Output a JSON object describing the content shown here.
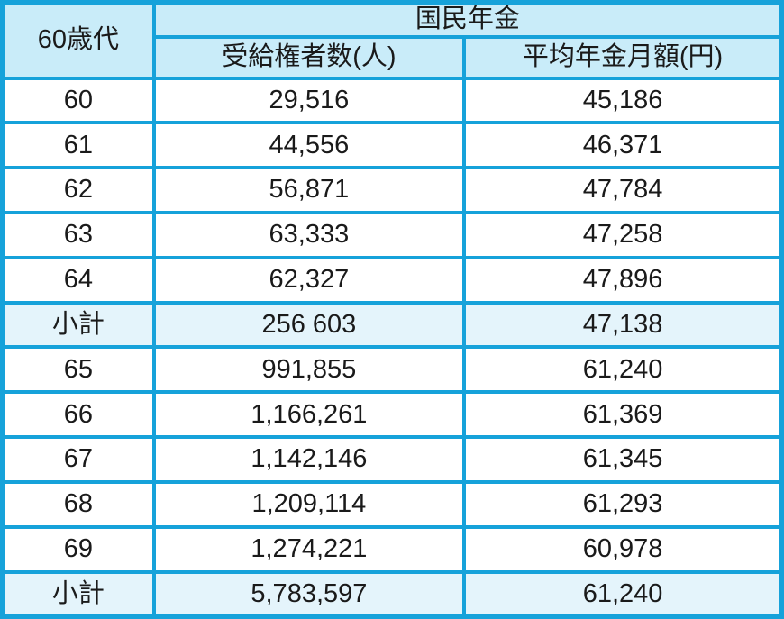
{
  "colors": {
    "border": "#16A2DA",
    "header_bg": "#C9ECF9",
    "subtotal_bg": "#E4F4FB",
    "row_bg": "#FFFFFF",
    "text": "#1A1A1A"
  },
  "table": {
    "corner_header": "60歳代",
    "group_header": "国民年金",
    "col_header_recipients": "受給権者数(人)",
    "col_header_amount": "平均年金月額(円)",
    "rows": [
      {
        "label": "60",
        "recipients": "29,516",
        "amount": "45,186",
        "subtotal": false
      },
      {
        "label": "61",
        "recipients": "44,556",
        "amount": "46,371",
        "subtotal": false
      },
      {
        "label": "62",
        "recipients": "56,871",
        "amount": "47,784",
        "subtotal": false
      },
      {
        "label": "63",
        "recipients": "63,333",
        "amount": "47,258",
        "subtotal": false
      },
      {
        "label": "64",
        "recipients": "62,327",
        "amount": "47,896",
        "subtotal": false
      },
      {
        "label": "小計",
        "recipients": "256 603",
        "amount": "47,138",
        "subtotal": true
      },
      {
        "label": "65",
        "recipients": "991,855",
        "amount": "61,240",
        "subtotal": false
      },
      {
        "label": "66",
        "recipients": "1,166,261",
        "amount": "61,369",
        "subtotal": false
      },
      {
        "label": "67",
        "recipients": "1,142,146",
        "amount": "61,345",
        "subtotal": false
      },
      {
        "label": "68",
        "recipients": "1,209,114",
        "amount": "61,293",
        "subtotal": false
      },
      {
        "label": "69",
        "recipients": "1,274,221",
        "amount": "60,978",
        "subtotal": false
      },
      {
        "label": "小計",
        "recipients": "5,783,597",
        "amount": "61,240",
        "subtotal": true
      }
    ]
  },
  "chart_data": {
    "type": "table",
    "title": "国民年金",
    "columns": [
      "60歳代",
      "受給権者数(人)",
      "平均年金月額(円)"
    ],
    "rows": [
      [
        "60",
        29516,
        45186
      ],
      [
        "61",
        44556,
        46371
      ],
      [
        "62",
        56871,
        47784
      ],
      [
        "63",
        63333,
        47258
      ],
      [
        "64",
        62327,
        47896
      ],
      [
        "小計",
        256603,
        47138
      ],
      [
        "65",
        991855,
        61240
      ],
      [
        "66",
        1166261,
        61369
      ],
      [
        "67",
        1142146,
        61345
      ],
      [
        "68",
        1209114,
        61293
      ],
      [
        "69",
        1274221,
        60978
      ],
      [
        "小計",
        5783597,
        61240
      ]
    ]
  }
}
